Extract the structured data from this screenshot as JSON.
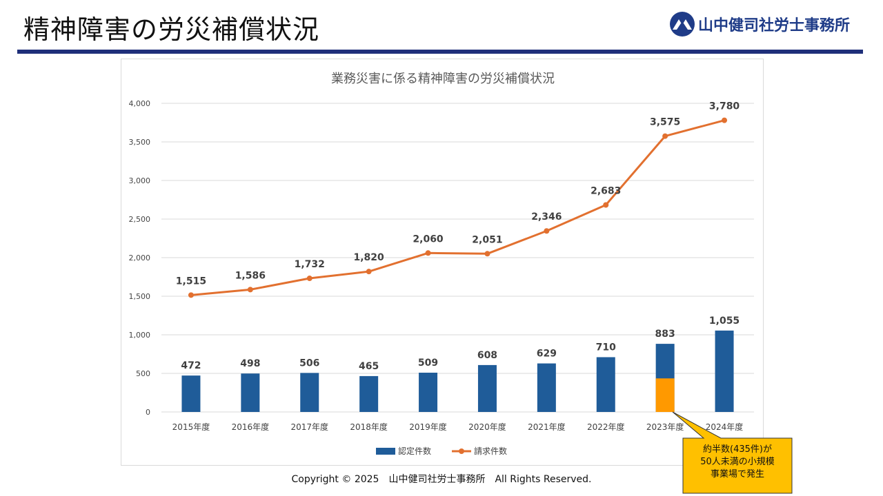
{
  "slide": {
    "title": "精神障害の労災補償状況",
    "logo_text": "山中健司社労士事務所",
    "footer": "Copyright © 2025　山中健司社労士事務所　All Rights Reserved."
  },
  "colors": {
    "bar": "#1f5c99",
    "bar_highlight": "#ff9900",
    "line": "#e2702f",
    "rule": "#1f2f7a",
    "callout_fill": "#ffc000"
  },
  "callout": {
    "lines": [
      "約半数(435件)が",
      "50人未満の小規模",
      "事業場で発生"
    ]
  },
  "chart_data": {
    "type": "bar",
    "title": "業務災害に係る精神障害の労災補償状況",
    "categories": [
      "2015年度",
      "2016年度",
      "2017年度",
      "2018年度",
      "2019年度",
      "2020年度",
      "2021年度",
      "2022年度",
      "2023年度",
      "2024年度"
    ],
    "series": [
      {
        "name": "認定件数",
        "type": "bar",
        "values": [
          472,
          498,
          506,
          465,
          509,
          608,
          629,
          710,
          883,
          1055
        ]
      },
      {
        "name": "請求件数",
        "type": "line",
        "values": [
          1515,
          1586,
          1732,
          1820,
          2060,
          2051,
          2346,
          2683,
          3575,
          3780
        ]
      }
    ],
    "highlight": {
      "category": "2023年度",
      "value": 435
    },
    "ylim": [
      0,
      4000
    ],
    "yticks": [
      "0",
      "500",
      "1,000",
      "1,500",
      "2,000",
      "2,500",
      "3,000",
      "3,500",
      "4,000"
    ],
    "grid": true,
    "legend": "bottom"
  }
}
